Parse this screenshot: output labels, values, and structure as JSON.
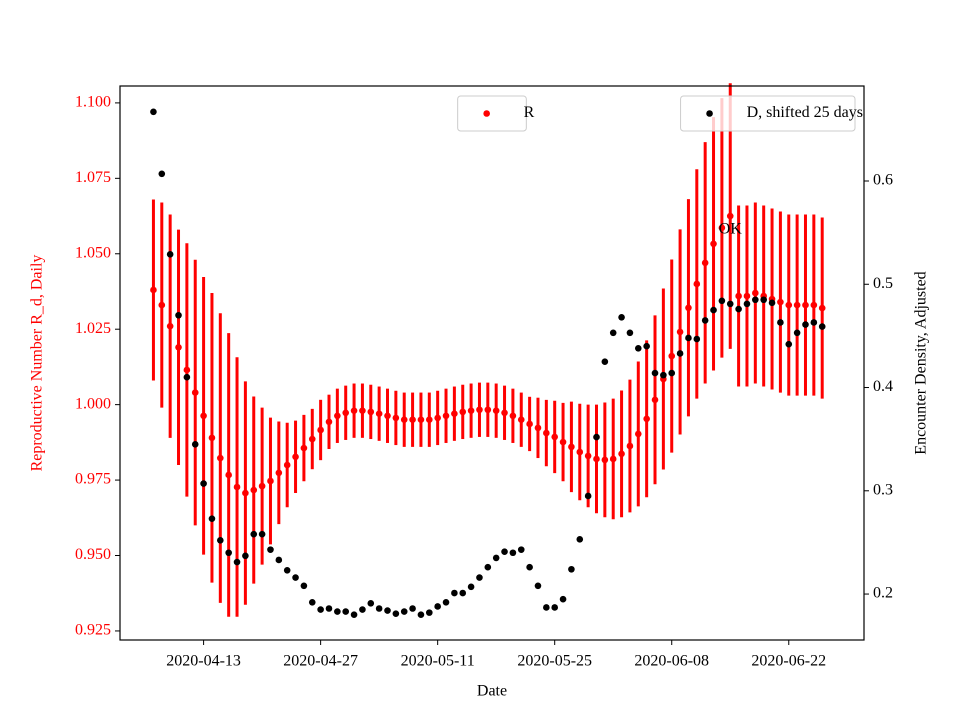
{
  "chart_data": {
    "type": "scatter",
    "xlabel": "Date",
    "ylabel": "Reproductive Number R_d, Daily",
    "y2label": "Encounter Density, Adjusted",
    "x": [
      "2020-04-07",
      "2020-04-08",
      "2020-04-09",
      "2020-04-10",
      "2020-04-11",
      "2020-04-12",
      "2020-04-13",
      "2020-04-14",
      "2020-04-15",
      "2020-04-16",
      "2020-04-17",
      "2020-04-18",
      "2020-04-19",
      "2020-04-20",
      "2020-04-21",
      "2020-04-22",
      "2020-04-23",
      "2020-04-24",
      "2020-04-25",
      "2020-04-26",
      "2020-04-27",
      "2020-04-28",
      "2020-04-29",
      "2020-04-30",
      "2020-05-01",
      "2020-05-02",
      "2020-05-03",
      "2020-05-04",
      "2020-05-05",
      "2020-05-06",
      "2020-05-07",
      "2020-05-08",
      "2020-05-09",
      "2020-05-10",
      "2020-05-11",
      "2020-05-12",
      "2020-05-13",
      "2020-05-14",
      "2020-05-15",
      "2020-05-16",
      "2020-05-17",
      "2020-05-18",
      "2020-05-19",
      "2020-05-20",
      "2020-05-21",
      "2020-05-22",
      "2020-05-23",
      "2020-05-24",
      "2020-05-25",
      "2020-05-26",
      "2020-05-27",
      "2020-05-28",
      "2020-05-29",
      "2020-05-30",
      "2020-05-31",
      "2020-06-01",
      "2020-06-02",
      "2020-06-03",
      "2020-06-04",
      "2020-06-05",
      "2020-06-06",
      "2020-06-07",
      "2020-06-08",
      "2020-06-09",
      "2020-06-10",
      "2020-06-11",
      "2020-06-12",
      "2020-06-13",
      "2020-06-14",
      "2020-06-15",
      "2020-06-16",
      "2020-06-17",
      "2020-06-18",
      "2020-06-19",
      "2020-06-20",
      "2020-06-21",
      "2020-06-22",
      "2020-06-23",
      "2020-06-24",
      "2020-06-25",
      "2020-06-26"
    ],
    "series": [
      {
        "name": "R",
        "color": "#ff0000",
        "legend": "upper center",
        "values": [
          1.038,
          1.033,
          1.026,
          1.019,
          1.0115,
          1.004,
          0.9963,
          0.989,
          0.9823,
          0.9767,
          0.9727,
          0.9707,
          0.9717,
          0.973,
          0.9747,
          0.9774,
          0.98,
          0.9827,
          0.9856,
          0.9886,
          0.9916,
          0.9943,
          0.9963,
          0.9973,
          0.998,
          0.998,
          0.9976,
          0.997,
          0.9963,
          0.9956,
          0.995,
          0.995,
          0.995,
          0.995,
          0.9956,
          0.9963,
          0.997,
          0.9976,
          0.998,
          0.9983,
          0.9983,
          0.998,
          0.9973,
          0.9963,
          0.995,
          0.9936,
          0.9923,
          0.9906,
          0.9893,
          0.9876,
          0.986,
          0.9843,
          0.983,
          0.982,
          0.9817,
          0.982,
          0.9837,
          0.9863,
          0.9903,
          0.9953,
          1.0016,
          1.0085,
          1.0161,
          1.0241,
          1.0321,
          1.04,
          1.047,
          1.0533,
          1.0586,
          1.0625,
          1.036,
          1.036,
          1.037,
          1.036,
          1.035,
          1.034,
          1.033,
          1.033,
          1.033,
          1.033,
          1.032
        ],
        "errors": [
          0.03,
          0.034,
          0.037,
          0.039,
          0.042,
          0.044,
          0.046,
          0.048,
          0.048,
          0.047,
          0.043,
          0.037,
          0.031,
          0.026,
          0.021,
          0.017,
          0.014,
          0.012,
          0.011,
          0.01,
          0.01,
          0.009,
          0.009,
          0.009,
          0.009,
          0.009,
          0.009,
          0.009,
          0.009,
          0.009,
          0.009,
          0.009,
          0.009,
          0.009,
          0.009,
          0.009,
          0.009,
          0.009,
          0.009,
          0.009,
          0.009,
          0.009,
          0.009,
          0.009,
          0.009,
          0.009,
          0.01,
          0.011,
          0.012,
          0.013,
          0.015,
          0.016,
          0.017,
          0.018,
          0.019,
          0.02,
          0.021,
          0.022,
          0.024,
          0.026,
          0.028,
          0.03,
          0.032,
          0.034,
          0.036,
          0.038,
          0.04,
          0.042,
          0.043,
          0.044,
          0.03,
          0.03,
          0.03,
          0.03,
          0.03,
          0.03,
          0.03,
          0.03,
          0.03,
          0.03,
          0.03
        ]
      },
      {
        "name": "D, shifted 25 days",
        "color": "#000000",
        "axis": "y2",
        "legend": "upper right",
        "values": [
          0.667,
          0.607,
          0.529,
          0.47,
          0.41,
          0.345,
          0.307,
          0.273,
          0.252,
          0.24,
          0.231,
          0.237,
          0.258,
          0.258,
          0.243,
          0.233,
          0.223,
          0.216,
          0.208,
          0.192,
          0.185,
          0.186,
          0.183,
          0.183,
          0.18,
          0.185,
          0.191,
          0.186,
          0.184,
          0.181,
          0.183,
          0.186,
          0.18,
          0.182,
          0.188,
          0.192,
          0.201,
          0.201,
          0.207,
          0.216,
          0.226,
          0.235,
          0.241,
          0.24,
          0.243,
          0.226,
          0.208,
          0.187,
          0.187,
          0.195,
          0.224,
          0.253,
          0.295,
          0.352,
          0.425,
          0.453,
          0.468,
          0.453,
          0.438,
          0.44,
          0.414,
          0.412,
          0.414,
          0.433,
          0.448,
          0.447,
          0.465,
          0.475,
          0.484,
          0.481,
          0.476,
          0.481,
          0.485,
          0.485,
          0.482,
          0.463,
          0.442,
          0.453,
          0.461,
          0.463,
          0.459
        ]
      }
    ],
    "xlim": [
      "2020-04-03",
      "2020-07-01"
    ],
    "xticks": [
      "2020-04-13",
      "2020-04-27",
      "2020-05-11",
      "2020-05-25",
      "2020-06-08",
      "2020-06-22"
    ],
    "ylim": [
      0.922,
      1.1056
    ],
    "yticks": [
      0.925,
      {
        "value": 0.95,
        "label": "0.950"
      },
      0.975,
      {
        "value": 1.0,
        "label": "1.000"
      },
      1.025,
      {
        "value": 1.05,
        "label": "1.050"
      },
      1.075,
      {
        "value": 1.1,
        "label": "1.100"
      }
    ],
    "y2lim": [
      0.1555,
      0.692
    ],
    "y2ticks": [
      0.2,
      0.3,
      0.4,
      0.5,
      0.6
    ],
    "annotations": [
      {
        "text": "OK",
        "x": "2020-06-15",
        "y": 1.058
      }
    ]
  }
}
